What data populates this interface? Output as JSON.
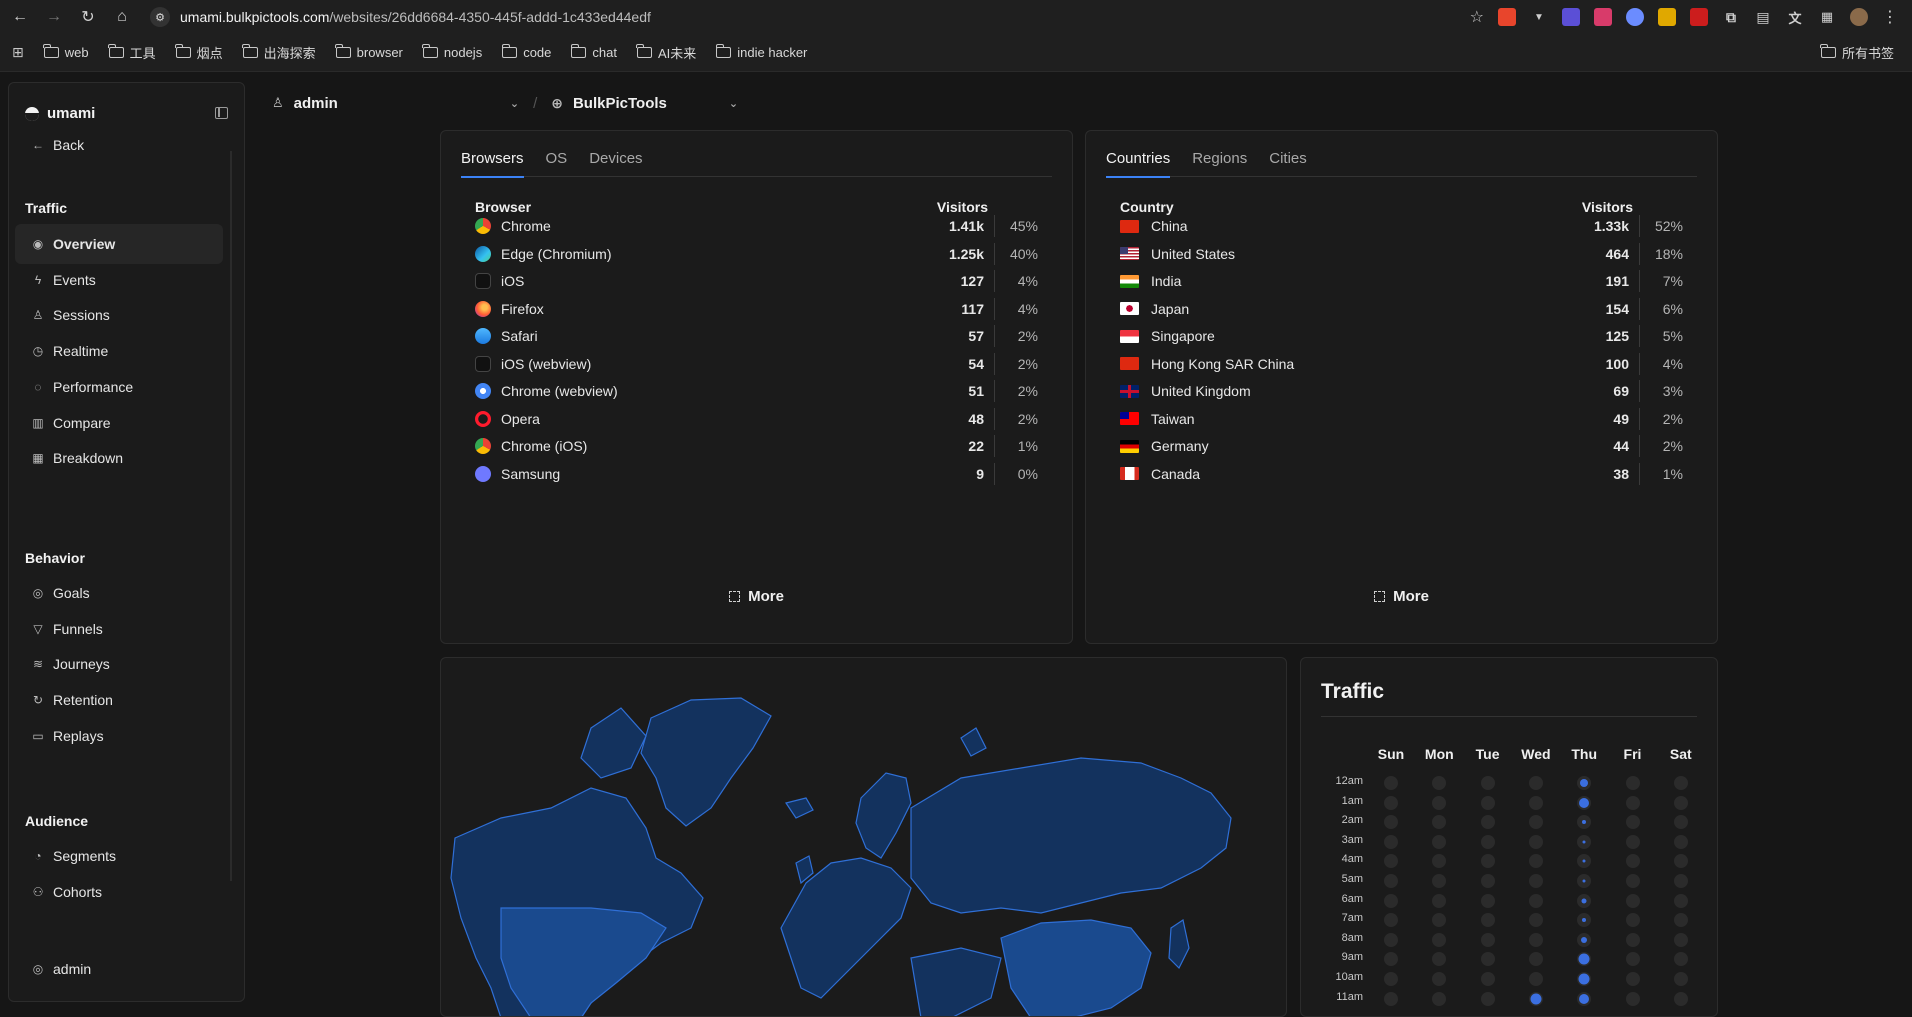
{
  "browser": {
    "url_host": "umami.bulkpictools.com",
    "url_path": "/websites/26dd6684-4350-445f-addd-1c433ed44edf",
    "bookmarks": [
      "web",
      "工具",
      "烟点",
      "出海探索",
      "browser",
      "nodejs",
      "code",
      "chat",
      "AI未来",
      "indie hacker"
    ],
    "all_bookmarks": "所有书签"
  },
  "sidebar": {
    "brand": "umami",
    "back": "Back",
    "sections": {
      "traffic": "Traffic",
      "behavior": "Behavior",
      "audience": "Audience"
    },
    "traffic_items": [
      "Overview",
      "Events",
      "Sessions",
      "Realtime",
      "Performance",
      "Compare",
      "Breakdown"
    ],
    "behavior_items": [
      "Goals",
      "Funnels",
      "Journeys",
      "Retention",
      "Replays"
    ],
    "audience_items": [
      "Segments",
      "Cohorts"
    ],
    "user": "admin"
  },
  "header": {
    "team": "admin",
    "website": "BulkPicTools"
  },
  "browsers_panel": {
    "tabs": [
      "Browsers",
      "OS",
      "Devices"
    ],
    "col_name": "Browser",
    "col_visitors": "Visitors",
    "rows": [
      {
        "name": "Chrome",
        "visitors": "1.41k",
        "pct": "45%",
        "icon": "chrome-icon"
      },
      {
        "name": "Edge (Chromium)",
        "visitors": "1.25k",
        "pct": "40%",
        "icon": "edge-icon"
      },
      {
        "name": "iOS",
        "visitors": "127",
        "pct": "4%",
        "icon": "apple-icon"
      },
      {
        "name": "Firefox",
        "visitors": "117",
        "pct": "4%",
        "icon": "firefox-icon"
      },
      {
        "name": "Safari",
        "visitors": "57",
        "pct": "2%",
        "icon": "safari-icon"
      },
      {
        "name": "iOS (webview)",
        "visitors": "54",
        "pct": "2%",
        "icon": "apple-icon"
      },
      {
        "name": "Chrome (webview)",
        "visitors": "51",
        "pct": "2%",
        "icon": "chrome-webview-icon"
      },
      {
        "name": "Opera",
        "visitors": "48",
        "pct": "2%",
        "icon": "opera-icon"
      },
      {
        "name": "Chrome (iOS)",
        "visitors": "22",
        "pct": "1%",
        "icon": "chrome-icon"
      },
      {
        "name": "Samsung",
        "visitors": "9",
        "pct": "0%",
        "icon": "samsung-icon"
      }
    ],
    "more": "More"
  },
  "countries_panel": {
    "tabs": [
      "Countries",
      "Regions",
      "Cities"
    ],
    "col_name": "Country",
    "col_visitors": "Visitors",
    "rows": [
      {
        "name": "China",
        "visitors": "1.33k",
        "pct": "52%",
        "flag": "cn"
      },
      {
        "name": "United States",
        "visitors": "464",
        "pct": "18%",
        "flag": "us"
      },
      {
        "name": "India",
        "visitors": "191",
        "pct": "7%",
        "flag": "in"
      },
      {
        "name": "Japan",
        "visitors": "154",
        "pct": "6%",
        "flag": "jp"
      },
      {
        "name": "Singapore",
        "visitors": "125",
        "pct": "5%",
        "flag": "sg"
      },
      {
        "name": "Hong Kong SAR China",
        "visitors": "100",
        "pct": "4%",
        "flag": "hk"
      },
      {
        "name": "United Kingdom",
        "visitors": "69",
        "pct": "3%",
        "flag": "gb"
      },
      {
        "name": "Taiwan",
        "visitors": "49",
        "pct": "2%",
        "flag": "tw"
      },
      {
        "name": "Germany",
        "visitors": "44",
        "pct": "2%",
        "flag": "de"
      },
      {
        "name": "Canada",
        "visitors": "38",
        "pct": "1%",
        "flag": "ca"
      }
    ],
    "more": "More"
  },
  "traffic_panel": {
    "title": "Traffic",
    "days": [
      "Sun",
      "Mon",
      "Tue",
      "Wed",
      "Thu",
      "Fri",
      "Sat"
    ],
    "hours": [
      "12am",
      "1am",
      "2am",
      "3am",
      "4am",
      "5am",
      "6am",
      "7am",
      "8am",
      "9am",
      "10am",
      "11am"
    ],
    "intensity": [
      [
        0,
        0,
        0,
        0,
        0.6,
        0,
        0
      ],
      [
        0,
        0,
        0,
        0,
        0.7,
        0,
        0
      ],
      [
        0,
        0,
        0,
        0,
        0.3,
        0,
        0
      ],
      [
        0,
        0,
        0,
        0,
        0.2,
        0,
        0
      ],
      [
        0,
        0,
        0,
        0,
        0.2,
        0,
        0
      ],
      [
        0,
        0,
        0,
        0,
        0.2,
        0,
        0
      ],
      [
        0,
        0,
        0,
        0,
        0.35,
        0,
        0
      ],
      [
        0,
        0,
        0,
        0,
        0.3,
        0,
        0
      ],
      [
        0,
        0,
        0,
        0,
        0.4,
        0,
        0
      ],
      [
        0,
        0,
        0,
        0,
        0.75,
        0,
        0
      ],
      [
        0,
        0,
        0,
        0,
        0.8,
        0,
        0
      ],
      [
        0,
        0,
        0,
        0.8,
        0.7,
        0,
        0
      ]
    ],
    "accent": "#3b6fe0"
  }
}
